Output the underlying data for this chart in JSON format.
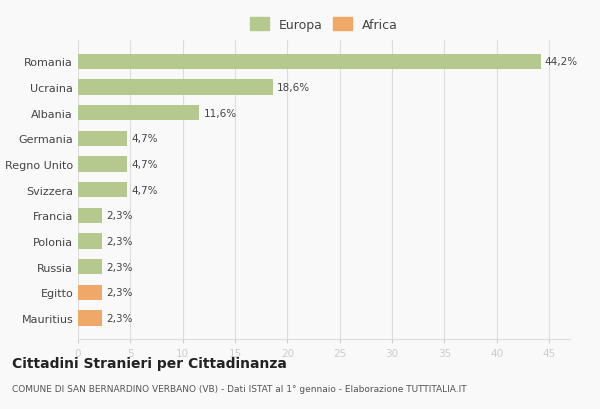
{
  "categories": [
    "Romania",
    "Ucraina",
    "Albania",
    "Germania",
    "Regno Unito",
    "Svizzera",
    "Francia",
    "Polonia",
    "Russia",
    "Egitto",
    "Mauritius"
  ],
  "values": [
    44.2,
    18.6,
    11.6,
    4.7,
    4.7,
    4.7,
    2.3,
    2.3,
    2.3,
    2.3,
    2.3
  ],
  "labels": [
    "44,2%",
    "18,6%",
    "11,6%",
    "4,7%",
    "4,7%",
    "4,7%",
    "2,3%",
    "2,3%",
    "2,3%",
    "2,3%",
    "2,3%"
  ],
  "colors": [
    "#b5c98e",
    "#b5c98e",
    "#b5c98e",
    "#b5c98e",
    "#b5c98e",
    "#b5c98e",
    "#b5c98e",
    "#b5c98e",
    "#b5c98e",
    "#f0a868",
    "#f0a868"
  ],
  "legend_europa_color": "#b5c98e",
  "legend_africa_color": "#f0a868",
  "xlim": [
    0,
    47
  ],
  "xticks": [
    0,
    5,
    10,
    15,
    20,
    25,
    30,
    35,
    40,
    45
  ],
  "title": "Cittadini Stranieri per Cittadinanza",
  "subtitle": "COMUNE DI SAN BERNARDINO VERBANO (VB) - Dati ISTAT al 1° gennaio - Elaborazione TUTTITALIA.IT",
  "bg_color": "#f9f9f9",
  "grid_color": "#dddddd",
  "bar_height": 0.6
}
